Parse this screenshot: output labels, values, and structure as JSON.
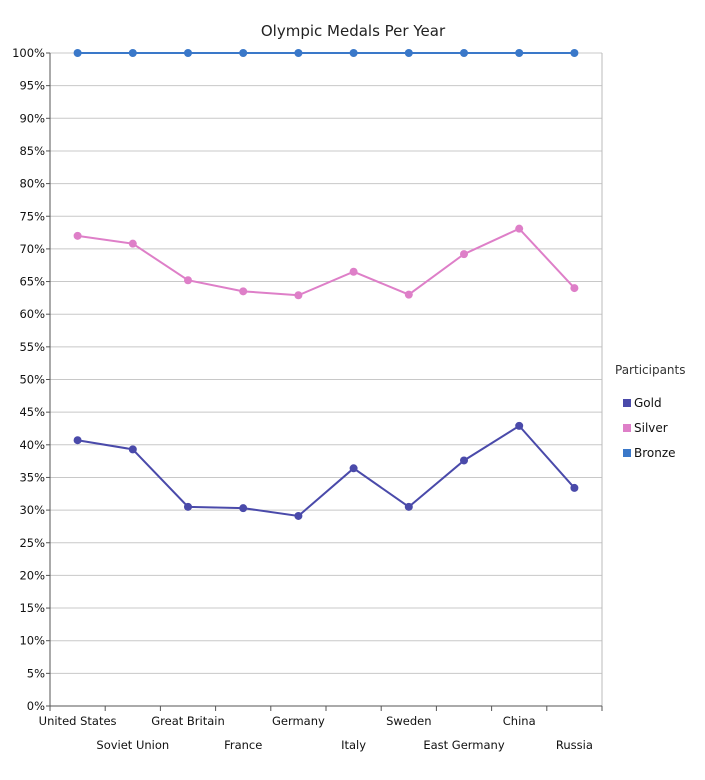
{
  "chart_data": {
    "type": "line",
    "title": "Olympic Medals Per Year",
    "categories": [
      "United States",
      "Soviet Union",
      "Great Britain",
      "France",
      "Germany",
      "Italy",
      "Sweden",
      "East Germany",
      "China",
      "Russia"
    ],
    "y_ticks": [
      "0%",
      "5%",
      "10%",
      "15%",
      "20%",
      "25%",
      "30%",
      "35%",
      "40%",
      "45%",
      "50%",
      "55%",
      "60%",
      "65%",
      "70%",
      "75%",
      "80%",
      "85%",
      "90%",
      "95%",
      "100%"
    ],
    "ylim": [
      0,
      100
    ],
    "y_unit": "%",
    "grid": true,
    "legend": {
      "title": "Participants",
      "placement": "right"
    },
    "series": [
      {
        "name": "Gold",
        "color": "#4a4aaa",
        "values": [
          40.7,
          39.3,
          30.5,
          30.3,
          29.1,
          36.4,
          30.5,
          37.6,
          42.9,
          33.4
        ]
      },
      {
        "name": "Silver",
        "color": "#de7fc8",
        "values": [
          72.0,
          70.8,
          65.2,
          63.5,
          62.9,
          66.5,
          63.0,
          69.2,
          73.1,
          64.0
        ]
      },
      {
        "name": "Bronze",
        "color": "#3a78c9",
        "values": [
          100,
          100,
          100,
          100,
          100,
          100,
          100,
          100,
          100,
          100
        ]
      }
    ]
  }
}
